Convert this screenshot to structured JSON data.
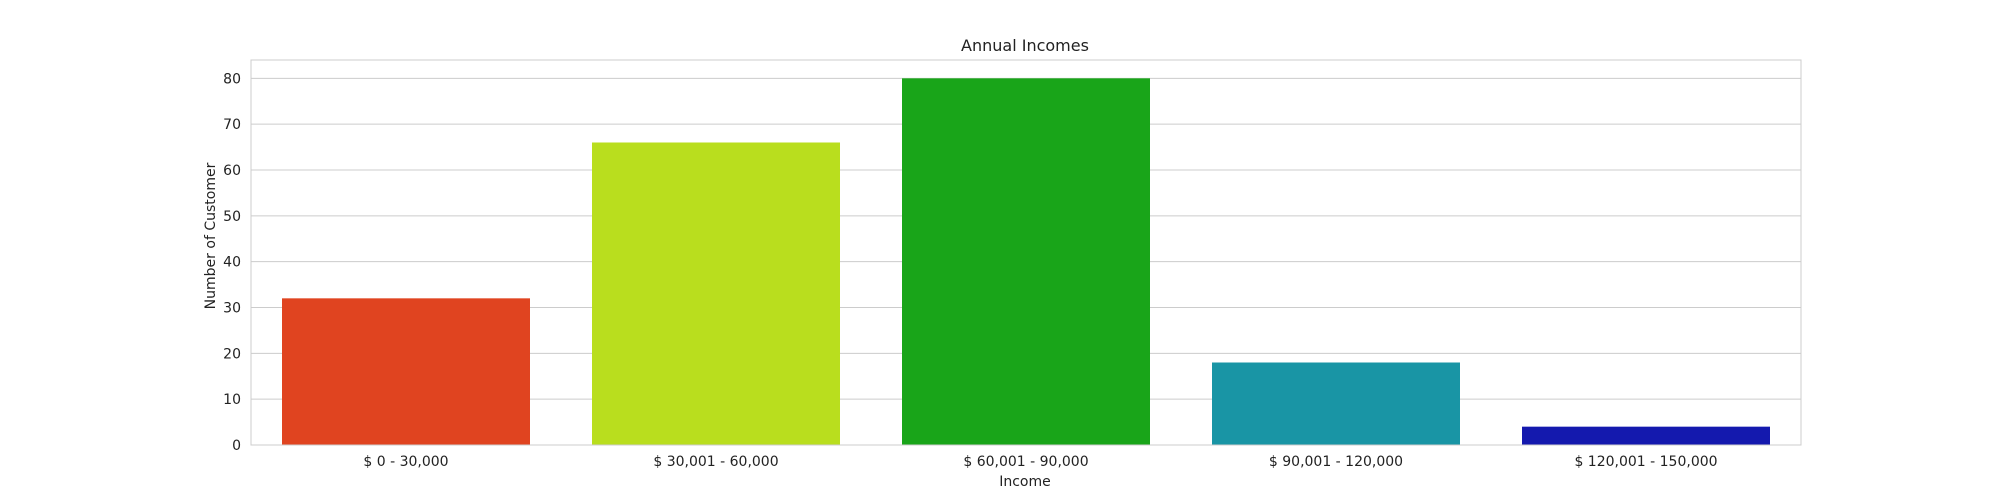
{
  "chart_data": {
    "type": "bar",
    "title": "Annual Incomes",
    "xlabel": "Income",
    "ylabel": "Number of Customer",
    "categories": [
      "$ 0 - 30,000",
      "$ 30,001 - 60,000",
      "$ 60,001 - 90,000",
      "$ 90,001 - 120,000",
      "$ 120,001 - 150,000"
    ],
    "values": [
      32,
      66,
      80,
      18,
      4
    ],
    "colors": [
      "#e04420",
      "#b9de1e",
      "#19a519",
      "#1995a5",
      "#1419ae"
    ],
    "ylim": [
      0,
      84
    ],
    "yticks": [
      0,
      10,
      20,
      30,
      40,
      50,
      60,
      70,
      80
    ],
    "grid": true,
    "legend": "none"
  }
}
